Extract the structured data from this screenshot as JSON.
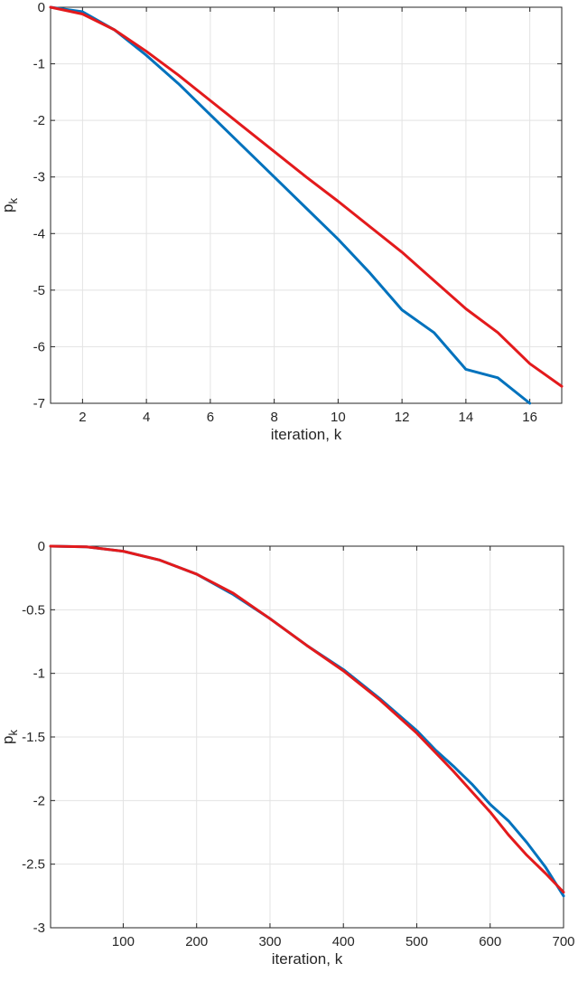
{
  "chart_data": [
    {
      "type": "line",
      "xlabel": "iteration, k",
      "ylabel": "p",
      "ylabel_subscript": "k",
      "xlim": [
        1,
        17
      ],
      "ylim": [
        -7,
        0
      ],
      "xticks": [
        2,
        4,
        6,
        8,
        10,
        12,
        14,
        16
      ],
      "yticks": [
        0,
        -1,
        -2,
        -3,
        -4,
        -5,
        -6,
        -7
      ],
      "grid": true,
      "series": [
        {
          "color": "#0072BD",
          "x": [
            1,
            2,
            3,
            4,
            5,
            6,
            7,
            8,
            9,
            10,
            11,
            12,
            13,
            14,
            15,
            16
          ],
          "y": [
            0,
            -0.08,
            -0.4,
            -0.85,
            -1.35,
            -1.9,
            -2.45,
            -3.0,
            -3.55,
            -4.1,
            -4.7,
            -5.35,
            -5.75,
            -6.4,
            -6.55,
            -7.0
          ]
        },
        {
          "color": "#E31A1C",
          "x": [
            1,
            2,
            3,
            4,
            5,
            6,
            7,
            8,
            9,
            10,
            11,
            12,
            13,
            14,
            15,
            16,
            17
          ],
          "y": [
            0,
            -0.12,
            -0.4,
            -0.78,
            -1.2,
            -1.65,
            -2.1,
            -2.55,
            -3.0,
            -3.43,
            -3.88,
            -4.33,
            -4.83,
            -5.33,
            -5.75,
            -6.3,
            -6.7
          ]
        }
      ]
    },
    {
      "type": "line",
      "xlabel": "iteration, k",
      "ylabel": "p",
      "ylabel_subscript": "k",
      "xlim": [
        1,
        700
      ],
      "ylim": [
        -3,
        0
      ],
      "xticks": [
        100,
        200,
        300,
        400,
        500,
        600,
        700
      ],
      "yticks": [
        0,
        -0.5,
        -1,
        -1.5,
        -2,
        -2.5,
        -3
      ],
      "ytick_labels": [
        "0",
        "-0.5",
        "-1",
        "-1.5",
        "-2",
        "-2.5",
        "-3"
      ],
      "grid": true,
      "series": [
        {
          "color": "#0072BD",
          "x": [
            1,
            50,
            100,
            150,
            200,
            250,
            300,
            350,
            400,
            450,
            500,
            525,
            550,
            575,
            600,
            625,
            650,
            675,
            700
          ],
          "y": [
            0,
            -0.005,
            -0.04,
            -0.11,
            -0.22,
            -0.38,
            -0.57,
            -0.78,
            -0.97,
            -1.2,
            -1.45,
            -1.6,
            -1.73,
            -1.87,
            -2.03,
            -2.16,
            -2.33,
            -2.52,
            -2.75
          ]
        },
        {
          "color": "#E31A1C",
          "x": [
            1,
            50,
            100,
            150,
            200,
            250,
            300,
            350,
            400,
            450,
            500,
            525,
            550,
            575,
            600,
            625,
            650,
            675,
            700
          ],
          "y": [
            0,
            -0.005,
            -0.04,
            -0.11,
            -0.22,
            -0.37,
            -0.57,
            -0.78,
            -0.98,
            -1.21,
            -1.47,
            -1.62,
            -1.77,
            -1.93,
            -2.09,
            -2.27,
            -2.43,
            -2.57,
            -2.72
          ]
        }
      ]
    }
  ]
}
